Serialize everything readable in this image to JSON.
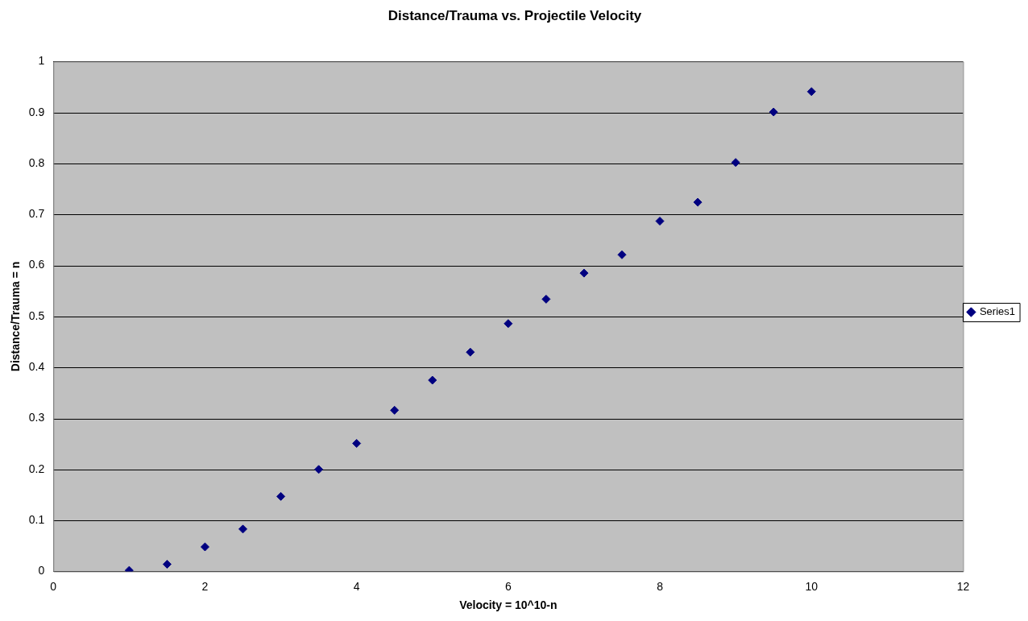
{
  "chart_data": {
    "type": "scatter",
    "title": "Distance/Trauma vs. Projectile Velocity",
    "xlabel": "Velocity = 10^10-n",
    "ylabel": "Distance/Trauma = n",
    "x": [
      1,
      1.5,
      2,
      2.5,
      3,
      3.5,
      4,
      4.5,
      5,
      5.5,
      6,
      6.5,
      7,
      7.5,
      8,
      8.5,
      9,
      9.5,
      10
    ],
    "series": [
      {
        "name": "Series1",
        "color": "#000080",
        "values": [
          0.002,
          0.014,
          0.048,
          0.083,
          0.147,
          0.2,
          0.251,
          0.316,
          0.375,
          0.43,
          0.486,
          0.534,
          0.585,
          0.621,
          0.687,
          0.724,
          0.802,
          0.901,
          0.941
        ]
      }
    ],
    "xlim": [
      0,
      12
    ],
    "xticks": [
      0,
      2,
      4,
      6,
      8,
      10,
      12
    ],
    "ylim": [
      0,
      1
    ],
    "yticks": [
      0,
      0.1,
      0.2,
      0.3,
      0.4,
      0.5,
      0.6,
      0.7,
      0.8,
      0.9,
      1
    ],
    "grid": "y",
    "legend": "right",
    "marker": "diamond"
  }
}
